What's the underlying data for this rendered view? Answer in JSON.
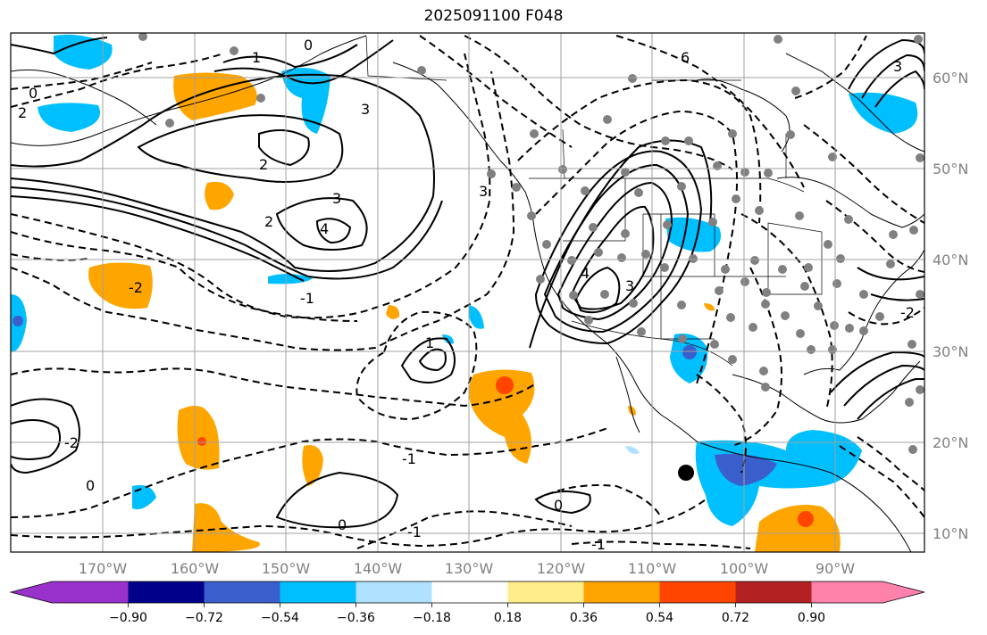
{
  "title": "2025091100 F048",
  "map": {
    "lon_labels": [
      "170°W",
      "160°W",
      "150°W",
      "140°W",
      "130°W",
      "120°W",
      "110°W",
      "100°W",
      "90°W"
    ],
    "lat_labels": [
      "60°N",
      "50°N",
      "40°N",
      "30°N",
      "20°N",
      "10°N"
    ],
    "contour_labels": [
      "0",
      "2",
      "1",
      "3",
      "3",
      "2",
      "-1",
      "4",
      "-2",
      "-1",
      "0",
      "1",
      "3",
      "4",
      "3",
      "2",
      "-2",
      "0",
      "-1",
      "0",
      "-1",
      "6",
      "0",
      "3",
      "-2"
    ]
  },
  "colorbar": {
    "ticks": [
      "−0.90",
      "−0.72",
      "−0.54",
      "−0.36",
      "−0.18",
      "0.18",
      "0.36",
      "0.54",
      "0.72",
      "0.90"
    ],
    "colors": [
      "#9932cc",
      "#00008b",
      "#3a5fcd",
      "#00bfff",
      "#b0e2ff",
      "#ffffff",
      "#ffec8b",
      "#ffa500",
      "#ff4500",
      "#b22222",
      "#ff82ab"
    ]
  }
}
